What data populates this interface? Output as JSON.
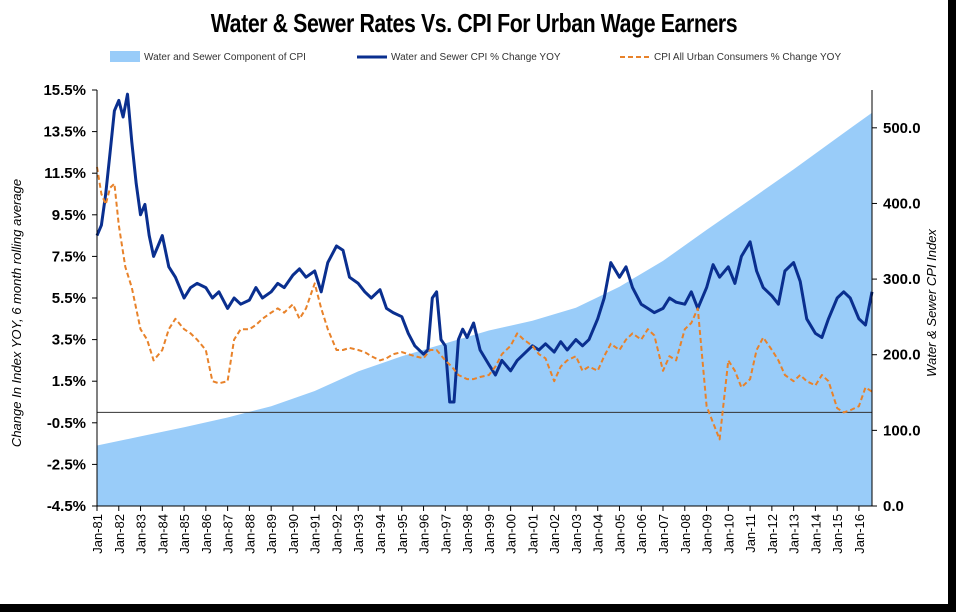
{
  "chart_data": {
    "type": "area+line",
    "title": "Water & Sewer Rates Vs. CPI For Urban Wage Earners",
    "y_left_label": "Change In Index YOY, 6 month rolling average",
    "y_right_label": "Water & Sewer CPI Index",
    "y_left_ticks": [
      "15.5%",
      "13.5%",
      "11.5%",
      "9.5%",
      "7.5%",
      "5.5%",
      "3.5%",
      "1.5%",
      "-0.5%",
      "-2.5%",
      "-4.5%"
    ],
    "y_left_values": [
      15.5,
      13.5,
      11.5,
      9.5,
      7.5,
      5.5,
      3.5,
      1.5,
      -0.5,
      -2.5,
      -4.5
    ],
    "y_left_range": [
      -4.5,
      15.5
    ],
    "y_right_ticks": [
      "500.0",
      "400.0",
      "300.0",
      "200.0",
      "100.0",
      "0.0"
    ],
    "y_right_values": [
      500,
      400,
      300,
      200,
      100,
      0
    ],
    "y_right_range": [
      0,
      550
    ],
    "x_range": [
      1981.0,
      2016.6
    ],
    "x_ticks": [
      "Jan-81",
      "Jan-82",
      "Jan-83",
      "Jan-84",
      "Jan-85",
      "Jan-86",
      "Jan-87",
      "Jan-88",
      "Jan-89",
      "Jan-90",
      "Jan-91",
      "Jan-92",
      "Jan-93",
      "Jan-94",
      "Jan-95",
      "Jan-96",
      "Jan-97",
      "Jan-98",
      "Jan-99",
      "Jan-00",
      "Jan-01",
      "Jan-02",
      "Jan-03",
      "Jan-04",
      "Jan-05",
      "Jan-06",
      "Jan-07",
      "Jan-08",
      "Jan-09",
      "Jan-10",
      "Jan-11",
      "Jan-12",
      "Jan-13",
      "Jan-14",
      "Jan-15",
      "Jan-16"
    ],
    "zero_line": 0,
    "legend": [
      {
        "name": "Water and Sewer Component of CPI",
        "style": "area",
        "color": "#99CCF9"
      },
      {
        "name": "Water and Sewer CPI % Change YOY",
        "style": "solid",
        "color": "#0A2F8F"
      },
      {
        "name": "CPI All Urban Consumers % Change YOY",
        "style": "dashed",
        "color": "#E8822A"
      }
    ],
    "series": [
      {
        "name": "Water and Sewer Component of CPI",
        "axis": "right",
        "x": [
          1981.0,
          1983.0,
          1985.0,
          1987.0,
          1989.0,
          1991.0,
          1993.0,
          1995.0,
          1997.0,
          1999.0,
          2001.0,
          2003.0,
          2005.0,
          2007.0,
          2009.0,
          2011.0,
          2013.0,
          2015.0,
          2016.6
        ],
        "y": [
          80,
          92,
          104,
          117,
          132,
          152,
          178,
          198,
          215,
          232,
          245,
          262,
          290,
          324,
          365,
          405,
          445,
          487,
          520
        ]
      },
      {
        "name": "Water and Sewer CPI % Change YOY",
        "axis": "left",
        "x": [
          1981.0,
          1981.2,
          1981.4,
          1981.6,
          1981.8,
          1982.0,
          1982.2,
          1982.4,
          1982.6,
          1982.8,
          1983.0,
          1983.2,
          1983.4,
          1983.6,
          1983.8,
          1984.0,
          1984.3,
          1984.6,
          1985.0,
          1985.3,
          1985.6,
          1986.0,
          1986.3,
          1986.6,
          1987.0,
          1987.3,
          1987.6,
          1988.0,
          1988.3,
          1988.6,
          1989.0,
          1989.3,
          1989.6,
          1990.0,
          1990.3,
          1990.6,
          1991.0,
          1991.3,
          1991.6,
          1992.0,
          1992.3,
          1992.6,
          1993.0,
          1993.3,
          1993.6,
          1994.0,
          1994.3,
          1994.6,
          1995.0,
          1995.3,
          1995.6,
          1996.0,
          1996.2,
          1996.4,
          1996.6,
          1996.8,
          1997.0,
          1997.2,
          1997.4,
          1997.6,
          1997.8,
          1998.0,
          1998.3,
          1998.6,
          1999.0,
          1999.3,
          1999.6,
          2000.0,
          2000.3,
          2000.6,
          2001.0,
          2001.3,
          2001.6,
          2002.0,
          2002.3,
          2002.6,
          2003.0,
          2003.3,
          2003.6,
          2004.0,
          2004.3,
          2004.6,
          2005.0,
          2005.3,
          2005.6,
          2006.0,
          2006.3,
          2006.6,
          2007.0,
          2007.3,
          2007.6,
          2008.0,
          2008.3,
          2008.6,
          2009.0,
          2009.3,
          2009.6,
          2010.0,
          2010.3,
          2010.6,
          2011.0,
          2011.3,
          2011.6,
          2012.0,
          2012.3,
          2012.6,
          2013.0,
          2013.3,
          2013.6,
          2014.0,
          2014.3,
          2014.6,
          2015.0,
          2015.3,
          2015.6,
          2016.0,
          2016.3,
          2016.6
        ],
        "y": [
          8.5,
          9.0,
          10.5,
          12.5,
          14.5,
          15.0,
          14.2,
          15.3,
          13.0,
          11.0,
          9.5,
          10.0,
          8.5,
          7.5,
          8.0,
          8.5,
          7.0,
          6.5,
          5.5,
          6.0,
          6.2,
          6.0,
          5.5,
          5.8,
          5.0,
          5.5,
          5.2,
          5.4,
          6.0,
          5.5,
          5.8,
          6.2,
          6.0,
          6.6,
          6.9,
          6.5,
          6.8,
          5.8,
          7.2,
          8.0,
          7.8,
          6.5,
          6.2,
          5.8,
          5.5,
          5.9,
          5.0,
          4.8,
          4.6,
          3.8,
          3.2,
          2.8,
          3.0,
          5.5,
          5.8,
          3.5,
          3.2,
          0.5,
          0.5,
          3.5,
          4.0,
          3.6,
          4.3,
          3.0,
          2.3,
          1.8,
          2.5,
          2.0,
          2.5,
          2.8,
          3.2,
          3.0,
          3.3,
          2.9,
          3.4,
          3.0,
          3.5,
          3.2,
          3.5,
          4.5,
          5.5,
          7.2,
          6.5,
          7.0,
          6.0,
          5.2,
          5.0,
          4.8,
          5.0,
          5.5,
          5.3,
          5.2,
          5.8,
          5.0,
          6.0,
          7.1,
          6.5,
          7.0,
          6.2,
          7.5,
          8.2,
          6.8,
          6.0,
          5.6,
          5.2,
          6.8,
          7.2,
          6.3,
          4.5,
          3.8,
          3.6,
          4.5,
          5.5,
          5.8,
          5.5,
          4.5,
          4.2,
          5.8
        ]
      },
      {
        "name": "CPI All Urban Consumers % Change YOY",
        "axis": "left",
        "x": [
          1981.0,
          1981.2,
          1981.4,
          1981.6,
          1981.8,
          1982.0,
          1982.3,
          1982.6,
          1983.0,
          1983.3,
          1983.6,
          1984.0,
          1984.3,
          1984.6,
          1985.0,
          1985.3,
          1985.6,
          1986.0,
          1986.3,
          1986.6,
          1987.0,
          1987.3,
          1987.6,
          1988.0,
          1988.3,
          1988.6,
          1989.0,
          1989.3,
          1989.6,
          1990.0,
          1990.3,
          1990.6,
          1991.0,
          1991.3,
          1991.6,
          1992.0,
          1992.3,
          1992.6,
          1993.0,
          1993.3,
          1993.6,
          1994.0,
          1994.3,
          1994.6,
          1995.0,
          1995.3,
          1995.6,
          1996.0,
          1996.3,
          1996.6,
          1997.0,
          1997.3,
          1997.6,
          1998.0,
          1998.3,
          1998.6,
          1999.0,
          1999.3,
          1999.6,
          2000.0,
          2000.3,
          2000.6,
          2001.0,
          2001.3,
          2001.6,
          2002.0,
          2002.3,
          2002.6,
          2003.0,
          2003.3,
          2003.6,
          2004.0,
          2004.3,
          2004.6,
          2005.0,
          2005.3,
          2005.6,
          2006.0,
          2006.3,
          2006.6,
          2007.0,
          2007.3,
          2007.6,
          2008.0,
          2008.3,
          2008.6,
          2009.0,
          2009.3,
          2009.6,
          2010.0,
          2010.3,
          2010.6,
          2011.0,
          2011.3,
          2011.6,
          2012.0,
          2012.3,
          2012.6,
          2013.0,
          2013.3,
          2013.6,
          2014.0,
          2014.3,
          2014.6,
          2015.0,
          2015.3,
          2015.6,
          2016.0,
          2016.3,
          2016.6
        ],
        "y": [
          11.8,
          10.5,
          10.0,
          10.8,
          11.0,
          9.0,
          7.0,
          6.0,
          4.0,
          3.5,
          2.5,
          3.0,
          4.0,
          4.5,
          4.0,
          3.8,
          3.5,
          3.0,
          1.5,
          1.4,
          1.5,
          3.5,
          4.0,
          4.0,
          4.2,
          4.5,
          4.8,
          5.0,
          4.8,
          5.2,
          4.5,
          5.0,
          6.2,
          5.0,
          4.0,
          3.0,
          3.0,
          3.1,
          3.0,
          2.9,
          2.7,
          2.5,
          2.6,
          2.8,
          2.9,
          2.8,
          2.7,
          2.6,
          3.0,
          3.0,
          2.5,
          2.2,
          1.8,
          1.6,
          1.6,
          1.7,
          1.8,
          2.2,
          2.8,
          3.2,
          3.8,
          3.5,
          3.2,
          2.8,
          2.6,
          1.5,
          2.2,
          2.5,
          2.7,
          2.0,
          2.2,
          2.0,
          2.7,
          3.3,
          3.0,
          3.5,
          3.8,
          3.5,
          4.0,
          3.7,
          2.0,
          2.7,
          2.5,
          4.0,
          4.3,
          5.0,
          0.3,
          -0.5,
          -1.3,
          2.5,
          2.0,
          1.2,
          1.6,
          3.0,
          3.6,
          3.0,
          2.5,
          1.8,
          1.5,
          1.8,
          1.5,
          1.3,
          1.8,
          1.5,
          0.2,
          0.0,
          0.1,
          0.3,
          1.2,
          1.0
        ]
      }
    ]
  }
}
